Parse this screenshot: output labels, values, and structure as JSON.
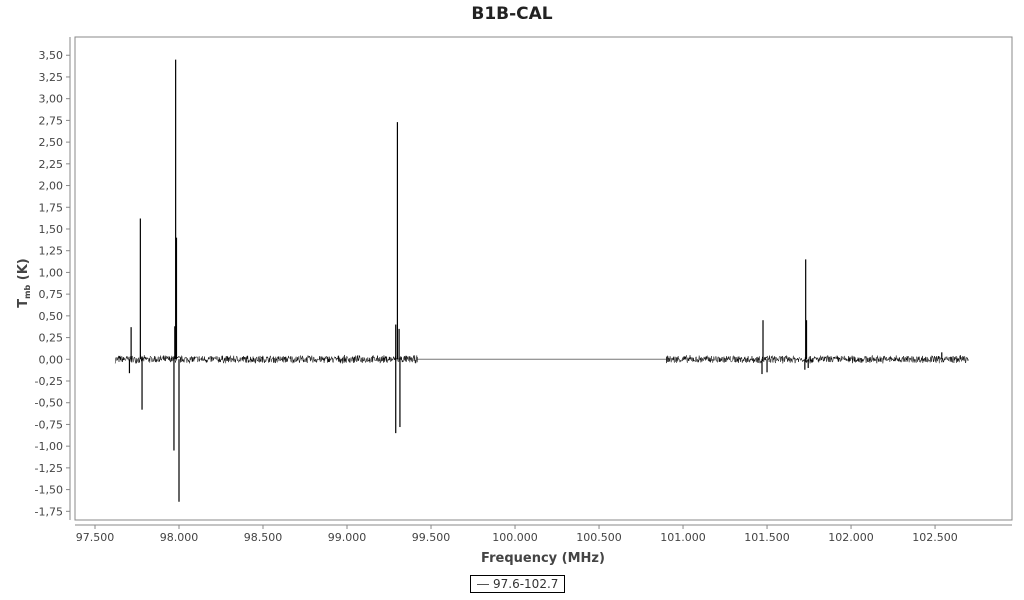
{
  "chart_data": {
    "type": "line",
    "title": "B1B-CAL",
    "xlabel": "Frequency (MHz)",
    "ylabel": "T_mb (K)",
    "ylabel_main": "T",
    "ylabel_sub": "mb",
    "ylabel_unit": " (K)",
    "xlim": [
      97.381,
      102.958
    ],
    "ylim": [
      -1.85,
      3.71
    ],
    "x_ticks": [
      97.5,
      98.0,
      98.5,
      99.0,
      99.5,
      100.0,
      100.5,
      101.0,
      101.5,
      102.0,
      102.5
    ],
    "x_tick_labels": [
      "97.500",
      "98.000",
      "98.500",
      "99.000",
      "99.500",
      "100.000",
      "100.500",
      "101.000",
      "101.500",
      "102.000",
      "102.500"
    ],
    "y_ticks": [
      3.5,
      3.25,
      3.0,
      2.75,
      2.5,
      2.25,
      2.0,
      1.75,
      1.5,
      1.25,
      1.0,
      0.75,
      0.5,
      0.25,
      0.0,
      -0.25,
      -0.5,
      -0.75,
      -1.0,
      -1.25,
      -1.5,
      -1.75
    ],
    "y_tick_labels": [
      "3,50",
      "3,25",
      "3,00",
      "2,75",
      "2,50",
      "2,25",
      "2,00",
      "1,75",
      "1,50",
      "1,25",
      "1,00",
      "0,75",
      "0,50",
      "0,25",
      "0,00",
      "-0,25",
      "-0,50",
      "-0,75",
      "-1,00",
      "-1,25",
      "-1,50",
      "-1,75"
    ],
    "grid": false,
    "legend_position": "bottom-center",
    "series": [
      {
        "name": "97.6-102.7",
        "color": "#000000",
        "noise_amplitude": 0.05,
        "observed_ranges": [
          [
            97.62,
            99.42
          ],
          [
            100.9,
            102.7
          ]
        ],
        "baseline_gap": [
          99.42,
          100.9
        ],
        "spikes": [
          {
            "x": 97.715,
            "y": 0.37
          },
          {
            "x": 97.705,
            "y": -0.16
          },
          {
            "x": 97.77,
            "y": 1.62
          },
          {
            "x": 97.78,
            "y": -0.58
          },
          {
            "x": 97.97,
            "y": -1.05
          },
          {
            "x": 97.975,
            "y": 0.38
          },
          {
            "x": 97.98,
            "y": 3.45
          },
          {
            "x": 97.985,
            "y": 1.4
          },
          {
            "x": 98.0,
            "y": -1.64
          },
          {
            "x": 99.29,
            "y": 0.4
          },
          {
            "x": 99.29,
            "y": -0.85
          },
          {
            "x": 99.3,
            "y": 2.73
          },
          {
            "x": 99.31,
            "y": 0.35
          },
          {
            "x": 99.315,
            "y": -0.78
          },
          {
            "x": 101.476,
            "y": 0.45
          },
          {
            "x": 101.47,
            "y": -0.17
          },
          {
            "x": 101.5,
            "y": -0.15
          },
          {
            "x": 101.73,
            "y": 1.15
          },
          {
            "x": 101.735,
            "y": 0.45
          },
          {
            "x": 101.725,
            "y": -0.12
          },
          {
            "x": 101.745,
            "y": -0.1
          },
          {
            "x": 102.54,
            "y": 0.08
          }
        ]
      }
    ]
  }
}
